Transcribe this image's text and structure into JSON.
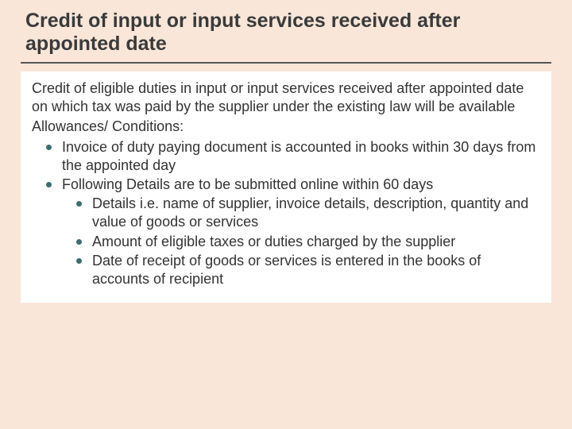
{
  "title": "Credit of input or input services received after appointed date",
  "intro": "Credit of eligible duties in input or input services received after appointed date on which tax was paid by the supplier under the existing law will be available",
  "allowances_label": "Allowances/ Conditions:",
  "bullets": [
    {
      "text": "Invoice of duty paying document is accounted in books within 30 days from the appointed day"
    },
    {
      "text": "Following Details are to be submitted online within 60 days",
      "children": [
        "Details i.e. name of supplier, invoice details, description, quantity and value of goods or services",
        "Amount of eligible taxes or duties charged by the supplier",
        "Date of receipt of goods or services is entered in the books of accounts of recipient"
      ]
    }
  ],
  "colors": {
    "background": "#f9e6d9",
    "box_background": "#ffffff",
    "title_color": "#3a3a3a",
    "divider_color": "#565656",
    "bullet_color": "#3d6e6e",
    "text_color": "#333333"
  },
  "typography": {
    "title_fontsize": 25,
    "body_fontsize": 18,
    "title_weight": "bold"
  }
}
